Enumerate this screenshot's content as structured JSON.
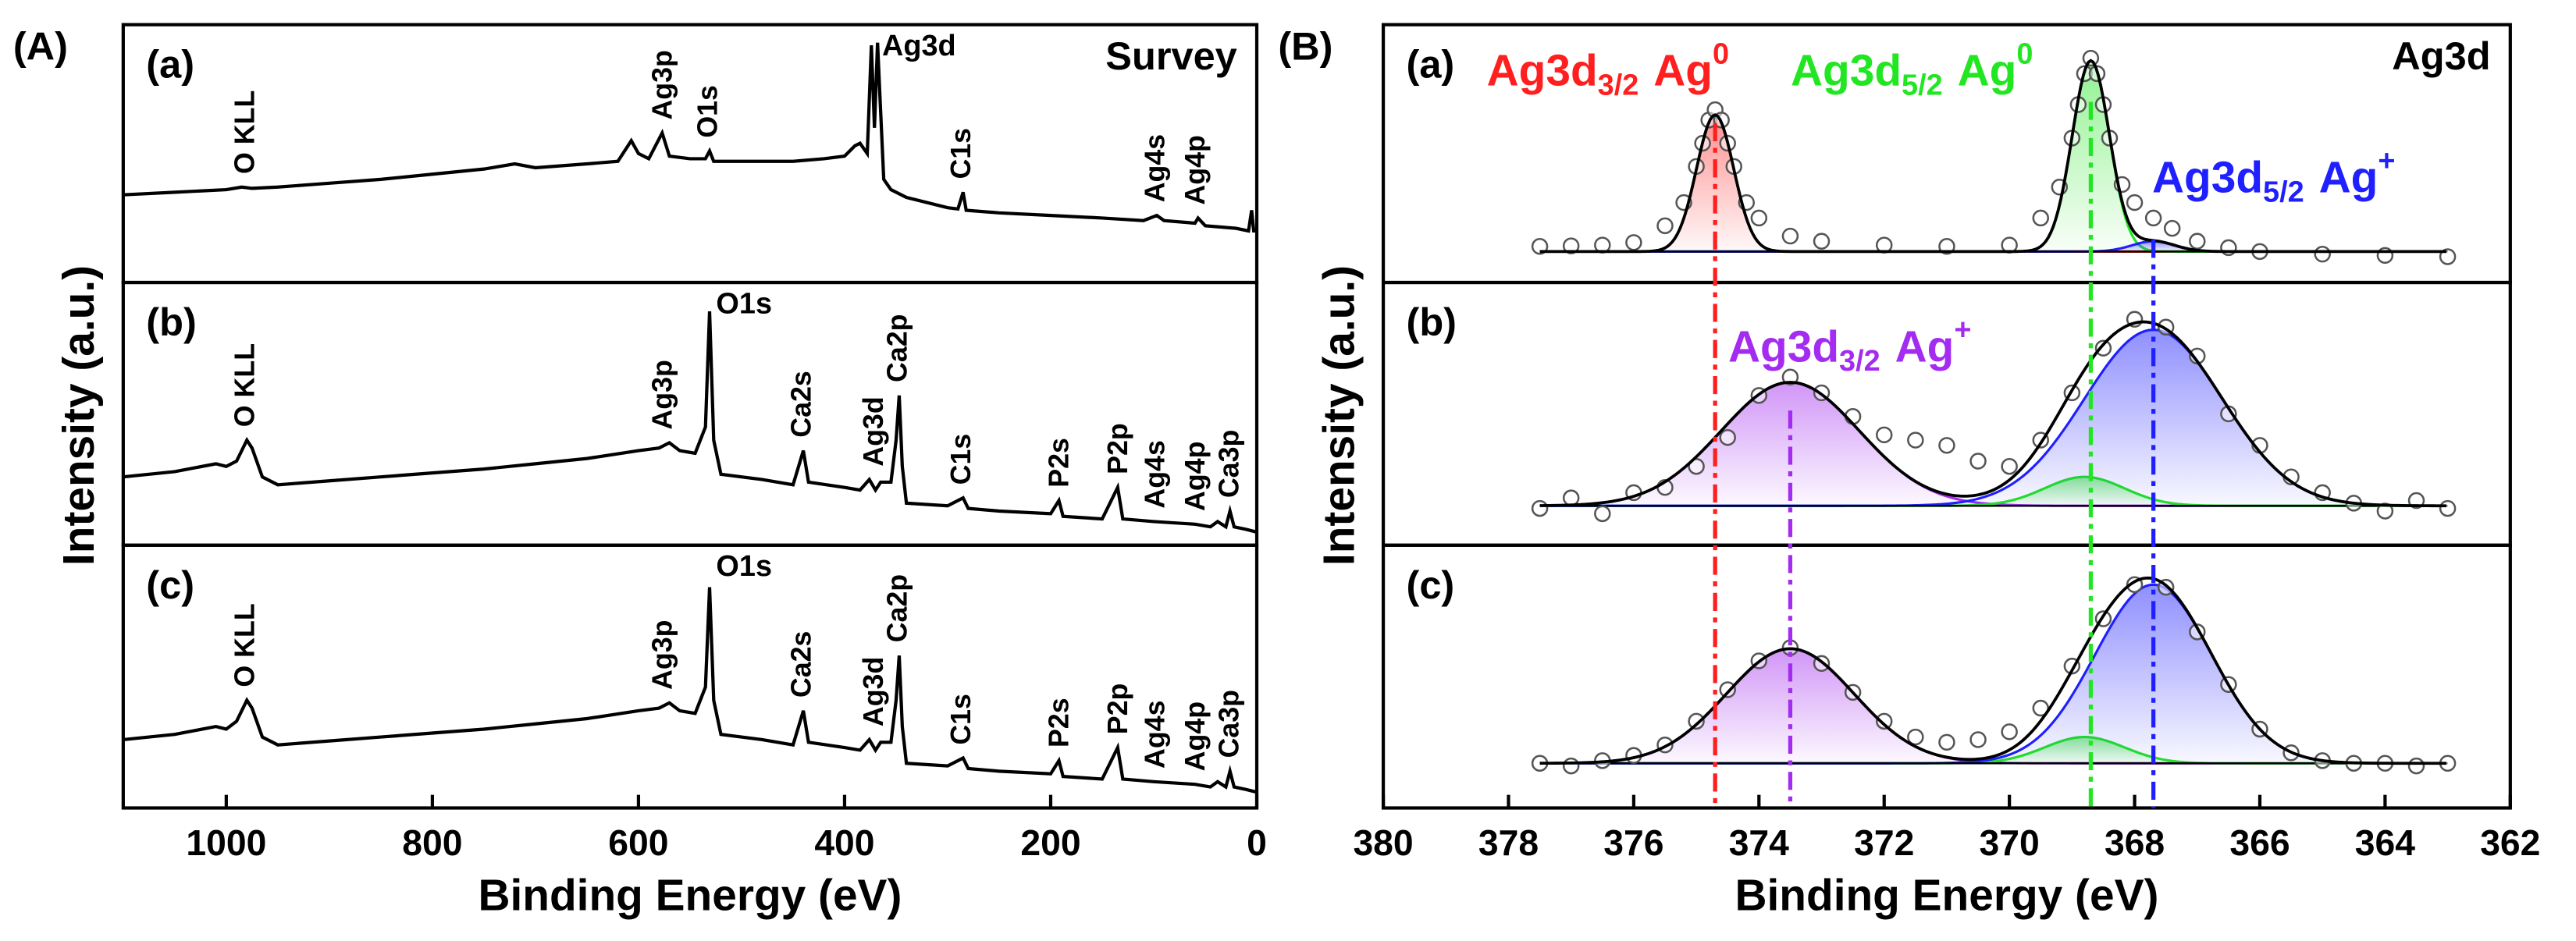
{
  "chart_data": [
    {
      "type": "line",
      "figure_label": "(A)",
      "title": "Survey",
      "xlabel": "Binding Energy (eV)",
      "ylabel": "Intensity (a.u.)",
      "xlim": [
        1100,
        0
      ],
      "xticks": [
        1000,
        800,
        600,
        400,
        200,
        0
      ],
      "color": "#000000",
      "panels": [
        {
          "label": "(a)",
          "ylim": [
            0,
            100
          ],
          "x": [
            1100,
            1050,
            1000,
            985,
            975,
            950,
            900,
            850,
            800,
            750,
            720,
            700,
            650,
            620,
            607,
            600,
            590,
            577,
            570,
            550,
            535,
            531,
            527,
            500,
            450,
            420,
            400,
            390,
            385,
            378,
            374,
            371,
            368,
            366,
            362,
            355,
            340,
            300,
            290,
            285,
            282,
            250,
            200,
            150,
            110,
            97,
            90,
            60,
            57,
            50,
            20,
            8,
            5,
            3,
            0
          ],
          "values": [
            34,
            35,
            36,
            37,
            36.5,
            37,
            38.5,
            40,
            42,
            44,
            46,
            44.5,
            46,
            47,
            55,
            50,
            48,
            58,
            49,
            48,
            48,
            51,
            47,
            47,
            47,
            48,
            49,
            53,
            54,
            50,
            92,
            60,
            93,
            75,
            40,
            36,
            33,
            29,
            28.5,
            35,
            28,
            27,
            26,
            25,
            24,
            26,
            24,
            23,
            25,
            22,
            21,
            20,
            28,
            20,
            20
          ],
          "annotations": [
            {
              "text": "O KLL",
              "x": 980
            },
            {
              "text": "Ag3p",
              "x": 575
            },
            {
              "text": "O1s",
              "x": 531
            },
            {
              "text": "Ag3d",
              "x": 370
            },
            {
              "text": "C1s",
              "x": 285
            },
            {
              "text": "Ag4s",
              "x": 97
            },
            {
              "text": "Ag4p",
              "x": 58
            }
          ]
        },
        {
          "label": "(b)",
          "ylim": [
            0,
            100
          ],
          "x": [
            1100,
            1050,
            1010,
            1000,
            990,
            980,
            975,
            965,
            950,
            900,
            850,
            800,
            750,
            700,
            650,
            600,
            580,
            570,
            560,
            545,
            535,
            531,
            527,
            520,
            480,
            450,
            440,
            435,
            400,
            385,
            376,
            370,
            365,
            355,
            350,
            347,
            344,
            340,
            300,
            285,
            280,
            250,
            200,
            192,
            188,
            150,
            135,
            130,
            100,
            60,
            45,
            38,
            30,
            26,
            22,
            10,
            0
          ],
          "values": [
            26,
            28,
            31,
            30,
            32,
            40,
            37,
            26,
            23,
            24.5,
            26,
            27.5,
            29,
            31,
            33,
            36,
            37,
            39,
            36,
            35,
            45,
            89,
            40,
            27,
            25,
            23,
            36,
            24,
            22,
            21,
            25,
            21,
            24,
            24,
            40,
            57,
            30,
            16,
            15,
            18,
            14,
            13,
            12,
            17,
            11,
            10,
            22,
            10,
            9,
            8,
            7,
            9,
            7,
            13,
            7,
            6,
            5
          ],
          "annotations": [
            {
              "text": "O KLL",
              "x": 980
            },
            {
              "text": "Ag3p",
              "x": 575
            },
            {
              "text": "O1s",
              "x": 531
            },
            {
              "text": "Ca2s",
              "x": 440
            },
            {
              "text": "Ag3d",
              "x": 370
            },
            {
              "text": "Ca2p",
              "x": 347
            },
            {
              "text": "C1s",
              "x": 285
            },
            {
              "text": "P2s",
              "x": 190
            },
            {
              "text": "P2p",
              "x": 133
            },
            {
              "text": "Ag4s",
              "x": 97
            },
            {
              "text": "Ag4p",
              "x": 58
            },
            {
              "text": "Ca3p",
              "x": 25
            }
          ]
        },
        {
          "label": "(c)",
          "ylim": [
            0,
            100
          ],
          "x": [
            1100,
            1050,
            1010,
            1000,
            990,
            980,
            975,
            965,
            950,
            900,
            850,
            800,
            750,
            700,
            650,
            600,
            580,
            570,
            560,
            545,
            535,
            531,
            527,
            520,
            480,
            450,
            440,
            435,
            400,
            385,
            376,
            370,
            365,
            355,
            350,
            347,
            344,
            340,
            300,
            285,
            280,
            250,
            200,
            192,
            188,
            150,
            135,
            130,
            100,
            60,
            45,
            38,
            30,
            26,
            22,
            10,
            0
          ],
          "values": [
            26,
            28,
            31,
            30,
            33,
            41,
            38,
            27,
            24,
            25.5,
            27,
            28.5,
            30,
            32,
            34,
            37,
            38,
            40,
            37,
            36,
            46,
            84,
            41,
            28,
            26,
            24,
            37,
            25,
            23,
            22,
            26,
            22,
            25,
            25,
            41,
            58,
            31,
            17,
            16,
            19,
            15,
            14,
            13,
            18,
            12,
            11,
            23,
            11,
            10,
            9,
            8,
            10,
            8,
            14,
            8,
            7,
            6
          ],
          "annotations": [
            {
              "text": "O KLL",
              "x": 980
            },
            {
              "text": "Ag3p",
              "x": 575
            },
            {
              "text": "O1s",
              "x": 531
            },
            {
              "text": "Ca2s",
              "x": 440
            },
            {
              "text": "Ag3d",
              "x": 370
            },
            {
              "text": "Ca2p",
              "x": 347
            },
            {
              "text": "C1s",
              "x": 285
            },
            {
              "text": "P2s",
              "x": 190
            },
            {
              "text": "P2p",
              "x": 133
            },
            {
              "text": "Ag4s",
              "x": 97
            },
            {
              "text": "Ag4p",
              "x": 58
            },
            {
              "text": "Ca3p",
              "x": 25
            }
          ]
        }
      ]
    },
    {
      "type": "scatter",
      "figure_label": "(B)",
      "title": "Ag3d",
      "xlabel": "Binding Energy (eV)",
      "ylabel": "Intensity (a.u.)",
      "xlim": [
        380,
        362
      ],
      "xticks": [
        380,
        378,
        376,
        374,
        372,
        370,
        368,
        366,
        364,
        362
      ],
      "fit_color": "#000000",
      "annotations": [
        {
          "text": "Ag3d",
          "sub": "3/2",
          "text2": "Ag",
          "sup": "0",
          "x": 374.7,
          "color": "#ff1f1f"
        },
        {
          "text": "Ag3d",
          "sub": "5/2",
          "text2": "Ag",
          "sup": "0",
          "x": 368.7,
          "color": "#22e622"
        },
        {
          "text": "Ag3d",
          "sub": "5/2",
          "text2": "Ag",
          "sup": "+",
          "x": 367.7,
          "color": "#1f1fff"
        },
        {
          "text": "Ag3d",
          "sub": "3/2",
          "text2": "Ag",
          "sup": "+",
          "x": 373.5,
          "color": "#a32cf0"
        }
      ],
      "panels": [
        {
          "label": "(a)",
          "ylim": [
            0,
            100
          ],
          "baseline": 12,
          "x": [
            377.5,
            377,
            376.5,
            376,
            375.5,
            375.2,
            375,
            374.9,
            374.8,
            374.7,
            374.6,
            374.5,
            374.4,
            374.2,
            374,
            373.5,
            373,
            372,
            371,
            370,
            369.5,
            369.2,
            369,
            368.9,
            368.8,
            368.7,
            368.6,
            368.5,
            368.4,
            368.2,
            368,
            367.7,
            367.4,
            367,
            366.5,
            366,
            365,
            364,
            363
          ],
          "values": [
            14,
            14.2,
            14.5,
            15.5,
            22,
            31,
            45,
            54,
            63,
            67,
            63,
            54,
            45,
            31,
            25,
            18,
            16,
            14.5,
            14,
            14.5,
            25,
            37,
            56,
            69,
            81,
            87,
            81,
            69,
            56,
            38,
            31,
            25,
            21,
            16,
            13.5,
            12,
            11,
            10.5,
            10
          ],
          "components": [
            {
              "center": 374.7,
              "height": 53,
              "fwhm": 0.7,
              "color": "#ff1f1f"
            },
            {
              "center": 368.7,
              "height": 74,
              "fwhm": 0.7,
              "color": "#22e622"
            },
            {
              "center": 367.7,
              "height": 4,
              "fwhm": 0.8,
              "color": "#1f1fff"
            }
          ]
        },
        {
          "label": "(b)",
          "ylim": [
            0,
            100
          ],
          "baseline": 15,
          "x": [
            377.5,
            377,
            376.5,
            376,
            375.5,
            375,
            374.5,
            374,
            373.5,
            373,
            372.5,
            372,
            371.5,
            371,
            370.5,
            370,
            369.5,
            369,
            368.5,
            368,
            367.5,
            367,
            366.5,
            366,
            365.5,
            365,
            364.5,
            364,
            363.5,
            363
          ],
          "values": [
            14,
            18,
            12,
            20,
            22,
            30,
            41,
            57,
            64,
            58,
            49,
            42,
            40,
            38,
            32,
            30,
            40,
            58,
            75,
            86,
            83,
            72,
            50,
            38,
            26,
            20,
            16,
            13,
            17,
            14
          ],
          "components": [
            {
              "center": 373.5,
              "height": 47,
              "fwhm": 2.6,
              "color": "#a32cf0"
            },
            {
              "center": 368.8,
              "height": 11,
              "fwhm": 1.5,
              "color": "#22e622"
            },
            {
              "center": 367.7,
              "height": 67,
              "fwhm": 2.6,
              "color": "#1f1fff"
            }
          ]
        },
        {
          "label": "(c)",
          "ylim": [
            0,
            100
          ],
          "baseline": 17,
          "x": [
            377.5,
            377,
            376.5,
            376,
            375.5,
            375,
            374.5,
            374,
            373.5,
            373,
            372.5,
            372,
            371.5,
            371,
            370.5,
            370,
            369.5,
            369,
            368.5,
            368,
            367.5,
            367,
            366.5,
            366,
            365.5,
            365,
            364.5,
            364,
            363.5,
            363
          ],
          "values": [
            17,
            16,
            18,
            20,
            24,
            33,
            45,
            56,
            61,
            55,
            44,
            33,
            27,
            25,
            26,
            29,
            38,
            54,
            72,
            85,
            84,
            67,
            47,
            30,
            21,
            18,
            17,
            17,
            16,
            17
          ],
          "components": [
            {
              "center": 373.5,
              "height": 43.6,
              "fwhm": 2.4,
              "color": "#a32cf0"
            },
            {
              "center": 368.8,
              "height": 10,
              "fwhm": 1.5,
              "color": "#22e622"
            },
            {
              "center": 367.7,
              "height": 68,
              "fwhm": 2.2,
              "color": "#1f1fff"
            }
          ]
        }
      ]
    }
  ]
}
